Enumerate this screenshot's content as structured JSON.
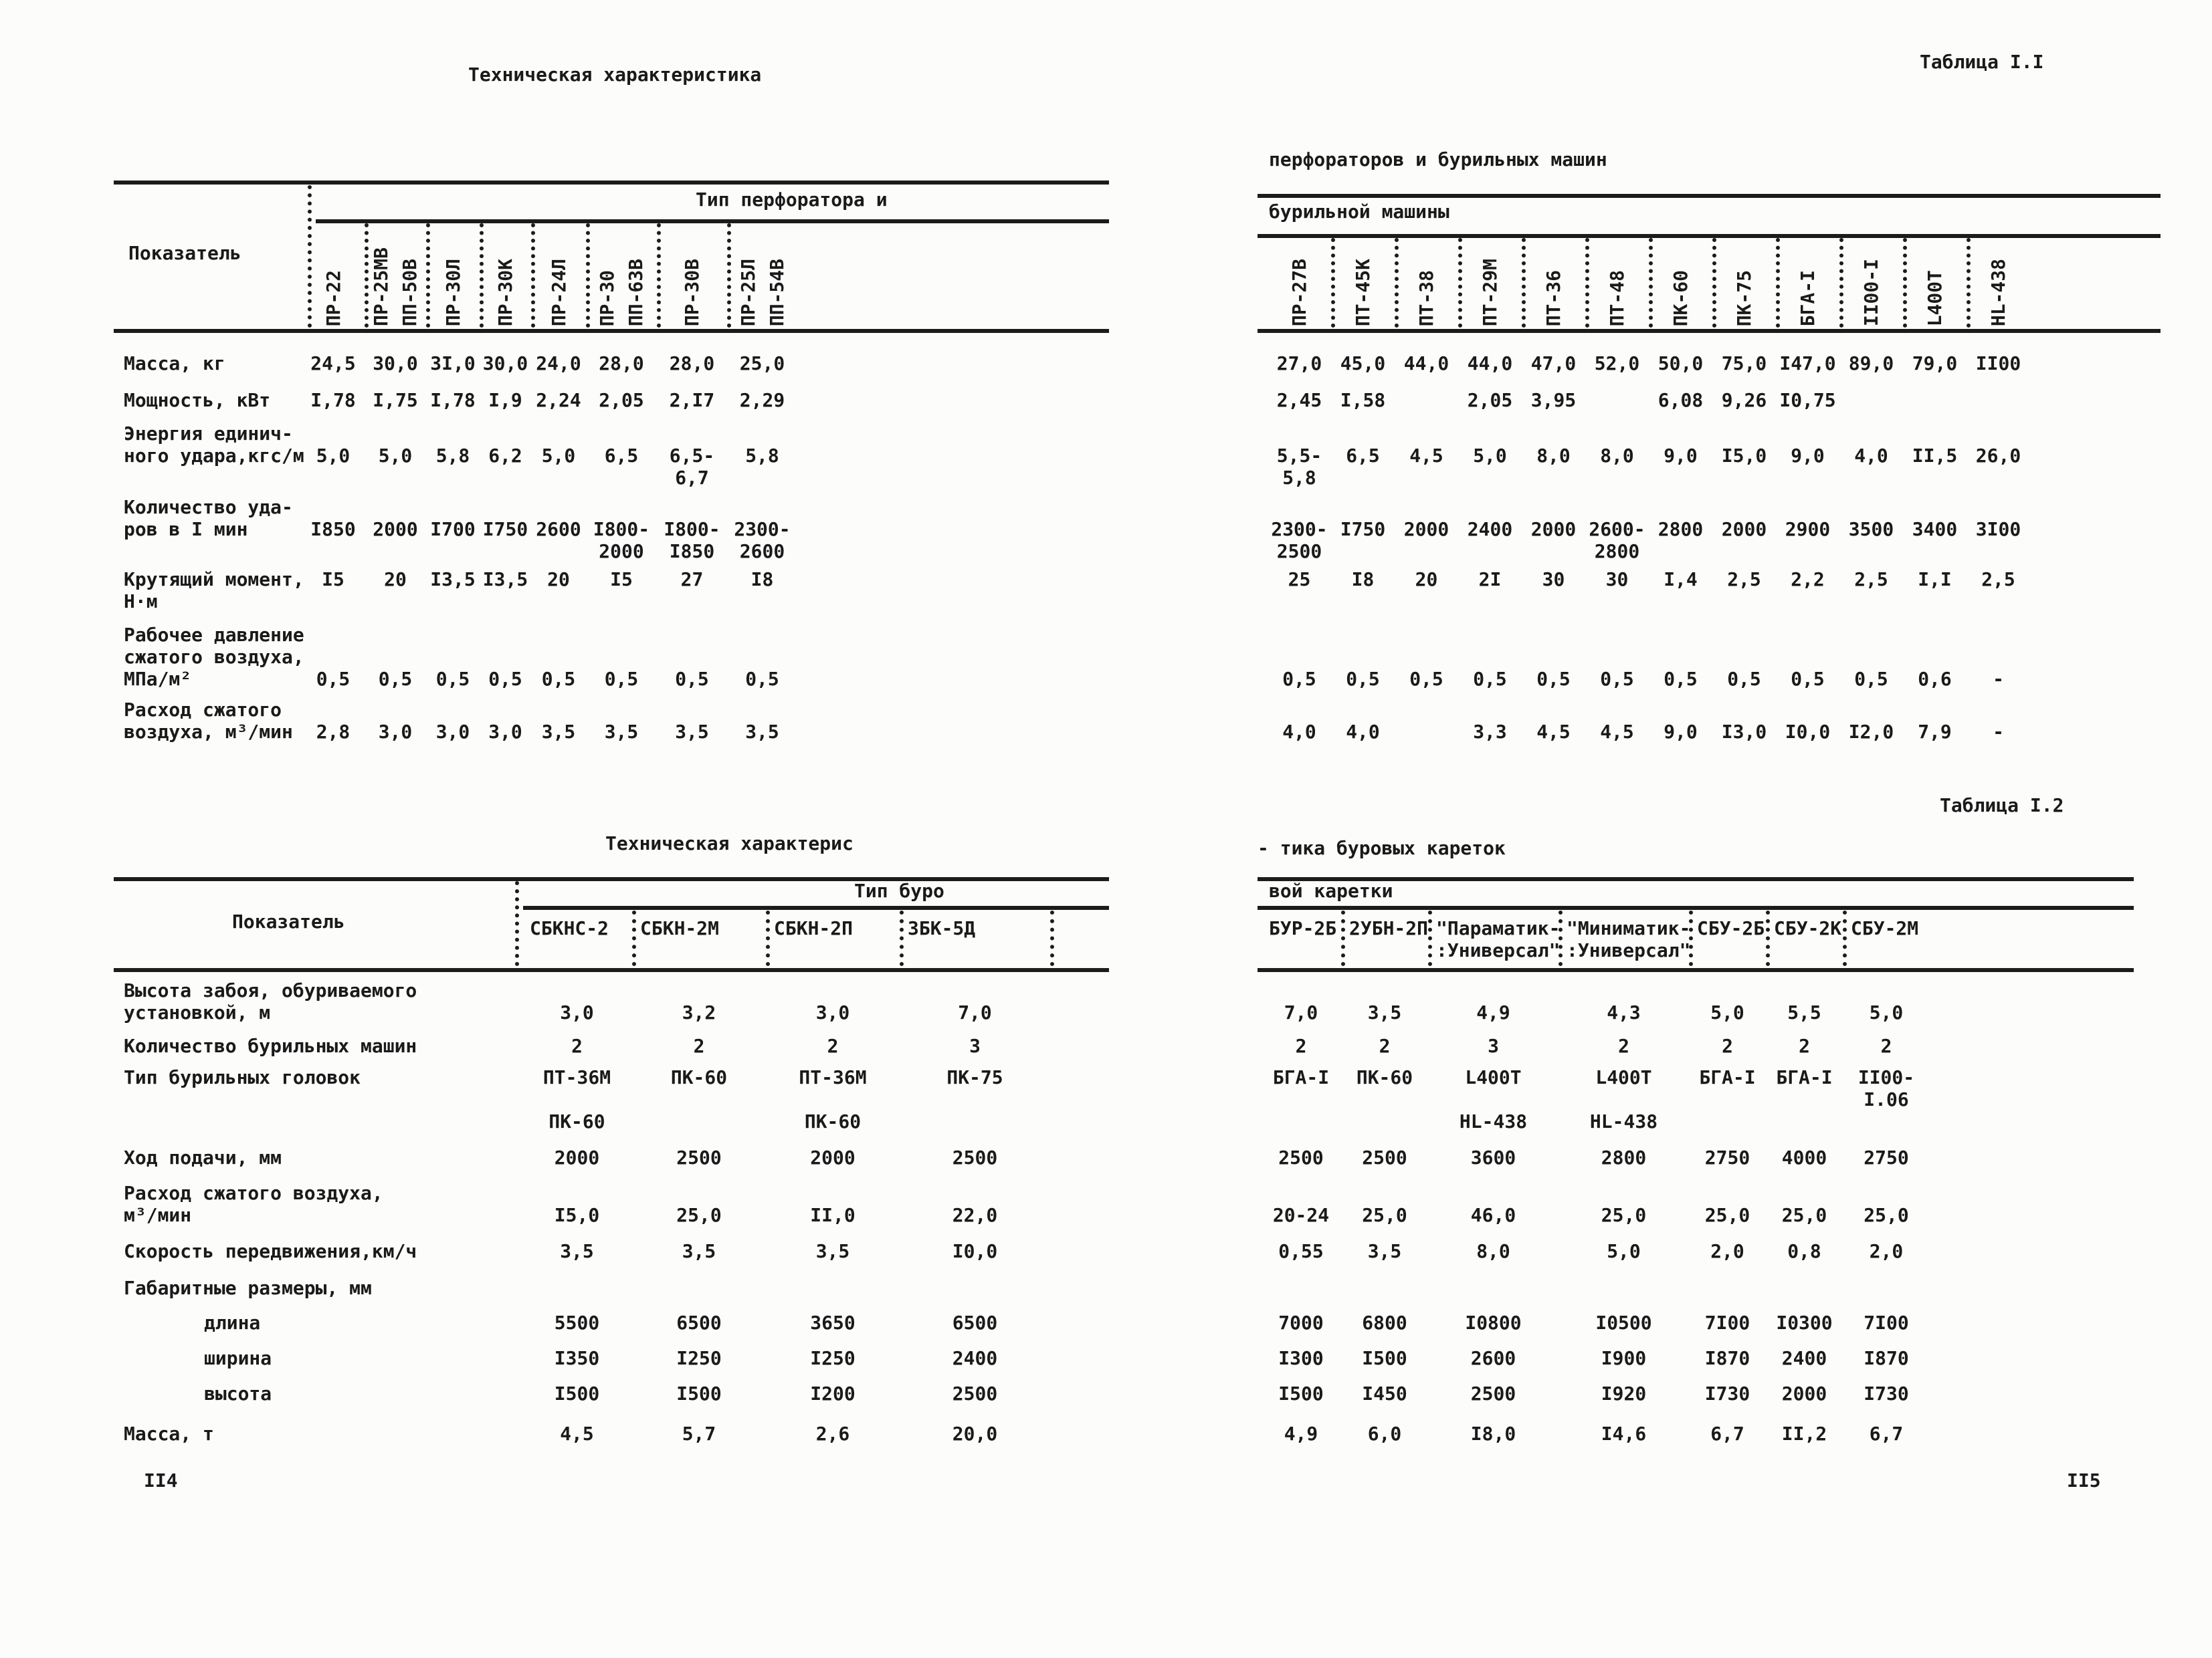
{
  "left_page": {
    "page_number": "II4",
    "table1": {
      "title": "Техническая характеристика",
      "header_span": "Тип перфоратора и",
      "stub_head": "Показатель",
      "columns": [
        [
          "ПР-22"
        ],
        [
          "ПР-25МВ",
          "ПП-50В"
        ],
        [
          "ПР-30Л"
        ],
        [
          "ПР-30К"
        ],
        [
          "ПР-24Л"
        ],
        [
          "ПР-30",
          "ПП-63В"
        ],
        [
          "ПР-30В"
        ],
        [
          "ПР-25Л",
          "ПП-54В"
        ]
      ],
      "rows": [
        {
          "label": "Масса, кг",
          "values": [
            "24,5",
            "30,0",
            "3I,0",
            "30,0",
            "24,0",
            "28,0",
            "28,0",
            "25,0"
          ]
        },
        {
          "label": "Мощность, кВт",
          "values": [
            "I,78",
            "I,75",
            "I,78",
            "I,9",
            "2,24",
            "2,05",
            "2,I7",
            "2,29"
          ]
        },
        {
          "label": "Энергия единич-\nного удара,кгс/м",
          "values": [
            "5,0",
            "5,0",
            "5,8",
            "6,2",
            "5,0",
            "6,5",
            "6,5-\n6,7",
            "5,8"
          ]
        },
        {
          "label": "Количество уда-\nров в I мин",
          "values": [
            "I850",
            "2000",
            "I700",
            "I750",
            "2600",
            "I800-\n2000",
            "I800-\nI850",
            "2300-\n2600"
          ]
        },
        {
          "label": "Крутящий момент,\nН·м",
          "values": [
            "I5",
            "20",
            "I3,5",
            "I3,5",
            "20",
            "I5",
            "27",
            "I8"
          ]
        },
        {
          "label": "Рабочее давление\nсжатого воздуха,\nМПа/м²",
          "values": [
            "0,5",
            "0,5",
            "0,5",
            "0,5",
            "0,5",
            "0,5",
            "0,5",
            "0,5"
          ]
        },
        {
          "label": "Расход сжатого\nвоздуха, м³/мин",
          "values": [
            "2,8",
            "3,0",
            "3,0",
            "3,0",
            "3,5",
            "3,5",
            "3,5",
            "3,5"
          ]
        }
      ]
    },
    "table2": {
      "title": "Техническая характерис",
      "header_span": "Тип буро",
      "stub_head": "Показатель",
      "columns": [
        "СБКНС-2",
        "СБКН-2М",
        "СБКН-2П",
        "ЗБК-5Д"
      ],
      "rows": [
        {
          "label": "Высота забоя, обуриваемого\nустановкой, м",
          "values": [
            "3,0",
            "3,2",
            "3,0",
            "7,0"
          ]
        },
        {
          "label": "Количество бурильных машин",
          "values": [
            "2",
            "2",
            "2",
            "3"
          ]
        },
        {
          "label": "Тип бурильных головок",
          "values": [
            "ПТ-36М\n\nПК-60",
            "ПК-60",
            "ПТ-36М\n\nПК-60",
            "ПК-75"
          ]
        },
        {
          "label": "Ход подачи, мм",
          "values": [
            "2000",
            "2500",
            "2000",
            "2500"
          ]
        },
        {
          "label": "Расход сжатого воздуха,\nм³/мин",
          "values": [
            "I5,0",
            "25,0",
            "II,0",
            "22,0"
          ]
        },
        {
          "label": "Скорость передвижения,км/ч",
          "values": [
            "3,5",
            "3,5",
            "3,5",
            "I0,0"
          ]
        },
        {
          "label": "Габаритные размеры, мм",
          "values": []
        },
        {
          "label": "длина",
          "values": [
            "5500",
            "6500",
            "3650",
            "6500"
          ]
        },
        {
          "label": "ширина",
          "values": [
            "I350",
            "I250",
            "I250",
            "2400"
          ]
        },
        {
          "label": "высота",
          "values": [
            "I500",
            "I500",
            "I200",
            "2500"
          ]
        },
        {
          "label": "Масса, т",
          "values": [
            "4,5",
            "5,7",
            "2,6",
            "20,0"
          ]
        }
      ]
    }
  },
  "right_page": {
    "page_number": "II5",
    "table_label_1": "Таблица I.I",
    "table_label_2": "Таблица I.2",
    "table1": {
      "title": "перфораторов и бурильных машин",
      "header_span": "бурильной машины",
      "columns": [
        [
          "ПР-27В"
        ],
        [
          "ПТ-45К"
        ],
        [
          "ПТ-38"
        ],
        [
          "ПТ-29М"
        ],
        [
          "ПТ-36"
        ],
        [
          "ПТ-48"
        ],
        [
          "ПК-60"
        ],
        [
          "ПК-75"
        ],
        [
          "БГА-I"
        ],
        [
          "II00-I"
        ],
        [
          "L400T"
        ],
        [
          "HL-438"
        ]
      ],
      "rows": [
        {
          "values": [
            "27,0",
            "45,0",
            "44,0",
            "44,0",
            "47,0",
            "52,0",
            "50,0",
            "75,0",
            "I47,0",
            "89,0",
            "79,0",
            "II00"
          ]
        },
        {
          "values": [
            "2,45",
            "I,58",
            "",
            "2,05",
            "3,95",
            "",
            "6,08",
            "9,26",
            "I0,75",
            "",
            "",
            ""
          ]
        },
        {
          "values": [
            "5,5-\n5,8",
            "6,5",
            "4,5",
            "5,0",
            "8,0",
            "8,0",
            "9,0",
            "I5,0",
            "9,0",
            "4,0",
            "II,5",
            "26,0"
          ]
        },
        {
          "values": [
            "2300-\n2500",
            "I750",
            "2000",
            "2400",
            "2000",
            "2600-\n2800",
            "2800",
            "2000",
            "2900",
            "3500",
            "3400",
            "3I00"
          ]
        },
        {
          "values": [
            "25",
            "I8",
            "20",
            "2I",
            "30",
            "30",
            "I,4",
            "2,5",
            "2,2",
            "2,5",
            "I,I",
            "2,5"
          ]
        },
        {
          "values": [
            "0,5",
            "0,5",
            "0,5",
            "0,5",
            "0,5",
            "0,5",
            "0,5",
            "0,5",
            "0,5",
            "0,5",
            "0,6",
            "-"
          ]
        },
        {
          "values": [
            "4,0",
            "4,0",
            "",
            "3,3",
            "4,5",
            "4,5",
            "9,0",
            "I3,0",
            "I0,0",
            "I2,0",
            "7,9",
            "-"
          ]
        }
      ]
    },
    "table2": {
      "title": "- тика буровых кареток",
      "header_span": "вой каретки",
      "columns": [
        "БУР-2Б",
        "2УБН-2П",
        "\"Параматик-\n:Универсал\"",
        "\"Миниматик-\n:Универсал\"",
        "СБУ-2Б",
        "СБУ-2К",
        "СБУ-2М"
      ],
      "rows": [
        {
          "values": [
            "7,0",
            "3,5",
            "4,9",
            "4,3",
            "5,0",
            "5,5",
            "5,0"
          ]
        },
        {
          "values": [
            "2",
            "2",
            "3",
            "2",
            "2",
            "2",
            "2"
          ]
        },
        {
          "values": [
            "БГА-I",
            "ПК-60",
            "L400T\n\nHL-438",
            "L400T\n\nHL-438",
            "БГА-I",
            "БГА-I",
            "II00-I.06"
          ]
        },
        {
          "values": [
            "2500",
            "2500",
            "3600",
            "2800",
            "2750",
            "4000",
            "2750"
          ]
        },
        {
          "values": [
            "20-24",
            "25,0",
            "46,0",
            "25,0",
            "25,0",
            "25,0",
            "25,0"
          ]
        },
        {
          "values": [
            "0,55",
            "3,5",
            "8,0",
            "5,0",
            "2,0",
            "0,8",
            "2,0"
          ]
        },
        {
          "values": []
        },
        {
          "values": [
            "7000",
            "6800",
            "I0800",
            "I0500",
            "7I00",
            "I0300",
            "7I00"
          ]
        },
        {
          "values": [
            "I300",
            "I500",
            "2600",
            "I900",
            "I870",
            "2400",
            "I870"
          ]
        },
        {
          "values": [
            "I500",
            "I450",
            "2500",
            "I920",
            "I730",
            "2000",
            "I730"
          ]
        },
        {
          "values": [
            "4,9",
            "6,0",
            "I8,0",
            "I4,6",
            "6,7",
            "II,2",
            "6,7"
          ]
        }
      ]
    }
  }
}
